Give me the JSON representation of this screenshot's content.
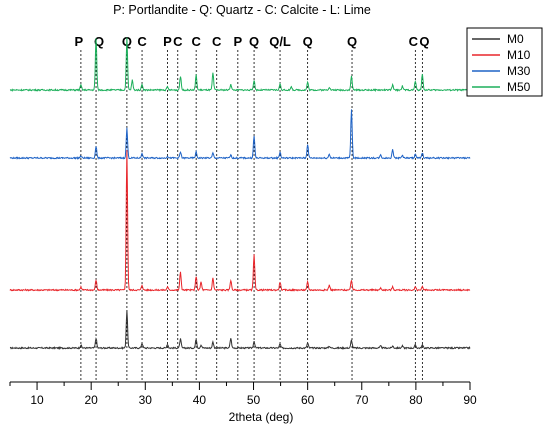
{
  "chart_data": {
    "type": "line",
    "title": "P: Portlandite - Q: Quartz - C: Calcite - L: Lime",
    "xlabel": "2theta (deg)",
    "ylabel": "",
    "xlim": [
      5,
      90
    ],
    "xticks": [
      10,
      20,
      30,
      40,
      50,
      60,
      70,
      80,
      90
    ],
    "y_axis_visible": false,
    "grid": false,
    "legend_position": "top-right",
    "colors": {
      "M0": "#333333",
      "M10": "#e8262b",
      "M30": "#1f63c6",
      "M50": "#1daf5b"
    },
    "peak_markers": [
      {
        "label": "P",
        "x": 18.1
      },
      {
        "label": "Q",
        "x": 20.9
      },
      {
        "label": "Q",
        "x": 26.6
      },
      {
        "label": "C",
        "x": 29.4
      },
      {
        "label": "P",
        "x": 34.1
      },
      {
        "label": "C",
        "x": 36.0
      },
      {
        "label": "C",
        "x": 39.4
      },
      {
        "label": "C",
        "x": 43.2
      },
      {
        "label": "P",
        "x": 47.1
      },
      {
        "label": "Q",
        "x": 50.1
      },
      {
        "label": "Q/L",
        "x": 54.9
      },
      {
        "label": "Q",
        "x": 60.0
      },
      {
        "label": "Q",
        "x": 68.2
      },
      {
        "label": "C",
        "x": 79.9
      },
      {
        "label": "Q",
        "x": 81.2
      }
    ],
    "series": [
      {
        "name": "M0",
        "offset": 0,
        "peaks": [
          [
            18.1,
            3
          ],
          [
            20.9,
            10
          ],
          [
            26.6,
            38
          ],
          [
            29.4,
            5
          ],
          [
            34.1,
            4
          ],
          [
            36.5,
            9
          ],
          [
            39.4,
            9
          ],
          [
            40.3,
            3
          ],
          [
            42.5,
            6
          ],
          [
            45.8,
            10
          ],
          [
            50.1,
            7
          ],
          [
            54.9,
            4
          ],
          [
            60.0,
            5
          ],
          [
            64.0,
            2
          ],
          [
            68.1,
            8
          ],
          [
            73.5,
            2
          ],
          [
            75.7,
            2
          ],
          [
            77.5,
            2
          ],
          [
            79.9,
            3
          ],
          [
            81.2,
            3
          ]
        ]
      },
      {
        "name": "M10",
        "offset": 58,
        "peaks": [
          [
            18.1,
            3
          ],
          [
            20.9,
            10
          ],
          [
            26.6,
            140
          ],
          [
            29.4,
            5
          ],
          [
            34.1,
            3
          ],
          [
            36.5,
            18
          ],
          [
            39.4,
            14
          ],
          [
            40.3,
            8
          ],
          [
            42.5,
            12
          ],
          [
            45.8,
            10
          ],
          [
            50.1,
            35
          ],
          [
            54.9,
            8
          ],
          [
            60.0,
            8
          ],
          [
            64.0,
            5
          ],
          [
            68.1,
            10
          ],
          [
            73.5,
            2
          ],
          [
            75.7,
            3
          ],
          [
            79.9,
            3
          ],
          [
            81.2,
            3
          ]
        ]
      },
      {
        "name": "M30",
        "offset": 190,
        "peaks": [
          [
            18.1,
            2
          ],
          [
            20.9,
            12
          ],
          [
            26.6,
            30
          ],
          [
            29.4,
            5
          ],
          [
            34.1,
            2
          ],
          [
            36.5,
            6
          ],
          [
            39.4,
            6
          ],
          [
            42.5,
            5
          ],
          [
            45.8,
            3
          ],
          [
            50.1,
            22
          ],
          [
            54.9,
            6
          ],
          [
            60.0,
            14
          ],
          [
            64.0,
            4
          ],
          [
            68.1,
            48
          ],
          [
            73.5,
            3
          ],
          [
            75.7,
            9
          ],
          [
            77.5,
            3
          ],
          [
            79.9,
            4
          ],
          [
            81.2,
            5
          ]
        ]
      },
      {
        "name": "M50",
        "offset": 258,
        "peaks": [
          [
            18.1,
            5
          ],
          [
            20.9,
            52
          ],
          [
            26.6,
            52
          ],
          [
            27.6,
            10
          ],
          [
            29.4,
            6
          ],
          [
            34.1,
            3
          ],
          [
            36.5,
            14
          ],
          [
            39.4,
            15
          ],
          [
            42.5,
            17
          ],
          [
            45.8,
            6
          ],
          [
            50.1,
            10
          ],
          [
            54.9,
            6
          ],
          [
            57.0,
            3
          ],
          [
            60.0,
            8
          ],
          [
            64.0,
            3
          ],
          [
            68.1,
            14
          ],
          [
            75.7,
            5
          ],
          [
            77.5,
            4
          ],
          [
            79.9,
            9
          ],
          [
            81.2,
            16
          ]
        ]
      }
    ]
  }
}
